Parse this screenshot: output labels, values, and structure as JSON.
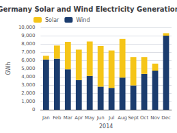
{
  "chart_data": {
    "type": "bar",
    "title": "Germany Solar and Wind Electricity Generation",
    "xlabel": "2014",
    "ylabel": "GWh",
    "categories": [
      "Jan",
      "Feb",
      "Mar",
      "Apr",
      "May",
      "Jun",
      "Jul",
      "Aug",
      "Sept",
      "Oct",
      "Nov",
      "Dec"
    ],
    "series": [
      {
        "name": "Wind",
        "color": "#1b3c6e",
        "values": [
          6100,
          6200,
          4900,
          3600,
          4100,
          2800,
          2650,
          3900,
          2950,
          4350,
          4750,
          9000
        ]
      },
      {
        "name": "Solar",
        "color": "#f5c518",
        "values": [
          450,
          1600,
          3350,
          3700,
          4200,
          4950,
          4550,
          4700,
          3450,
          2050,
          850,
          300
        ]
      }
    ],
    "stacked": true,
    "ylim": [
      0,
      10000
    ],
    "yticks": [
      0,
      1000,
      2000,
      3000,
      4000,
      5000,
      6000,
      7000,
      8000,
      9000,
      10000
    ],
    "grid": true,
    "legend": "upper left"
  }
}
